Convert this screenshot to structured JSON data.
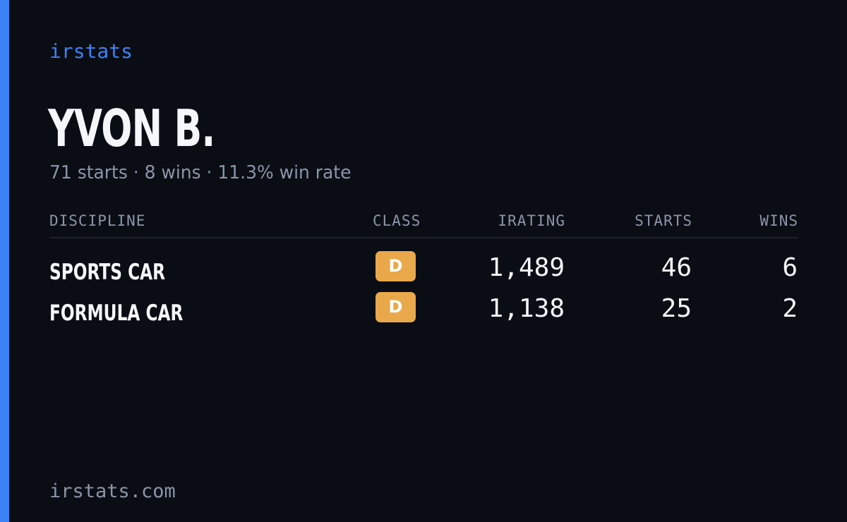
{
  "brand": "irstats",
  "driver": {
    "name": "YVON B.",
    "summary": "71 starts · 8 wins · 11.3% win rate"
  },
  "table": {
    "headers": {
      "discipline": "DISCIPLINE",
      "class": "CLASS",
      "irating": "IRATING",
      "starts": "STARTS",
      "wins": "WINS"
    },
    "rows": [
      {
        "discipline": "SPORTS CAR",
        "class": "D",
        "irating": "1,489",
        "starts": "46",
        "wins": "6"
      },
      {
        "discipline": "FORMULA CAR",
        "class": "D",
        "irating": "1,138",
        "starts": "25",
        "wins": "2"
      }
    ]
  },
  "footer": {
    "url": "irstats.com"
  },
  "colors": {
    "background": "#0a0d14",
    "accent": "#3b82f6",
    "class_d": "#e9a84a",
    "text_primary": "#f4f6fa",
    "text_muted": "#8b95a8"
  }
}
